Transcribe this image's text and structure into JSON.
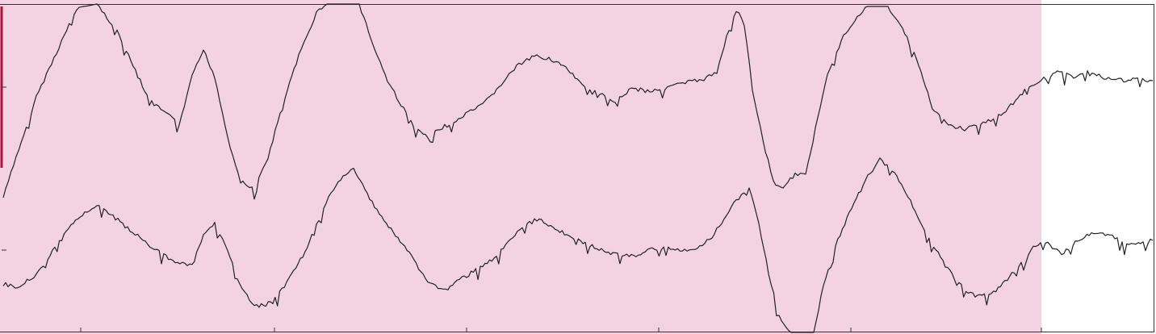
{
  "chart_data": {
    "type": "line",
    "title": "",
    "xlabel": "",
    "ylabel": "",
    "xlim": [
      0,
      1432
    ],
    "grid": false,
    "highlight_band": {
      "x_start": 0,
      "x_end": 1290,
      "color": "#f3d3e2"
    },
    "left_marker_color": "#b0123c",
    "line_color": "#222222",
    "x_ticks": [
      100,
      340,
      578,
      816,
      1054,
      1290
    ],
    "series": [
      {
        "offset": 0,
        "amplitude": 1,
        "points": [
          [
            4,
            245
          ],
          [
            20,
            195
          ],
          [
            45,
            120
          ],
          [
            70,
            65
          ],
          [
            95,
            10
          ],
          [
            120,
            5
          ],
          [
            145,
            38
          ],
          [
            165,
            82
          ],
          [
            185,
            125
          ],
          [
            205,
            140
          ],
          [
            222,
            155
          ],
          [
            238,
            95
          ],
          [
            252,
            62
          ],
          [
            266,
            95
          ],
          [
            282,
            170
          ],
          [
            298,
            225
          ],
          [
            315,
            235
          ],
          [
            332,
            195
          ],
          [
            350,
            130
          ],
          [
            370,
            70
          ],
          [
            392,
            15
          ],
          [
            405,
            5
          ],
          [
            445,
            5
          ],
          [
            462,
            55
          ],
          [
            480,
            100
          ],
          [
            500,
            135
          ],
          [
            515,
            160
          ],
          [
            530,
            170
          ],
          [
            548,
            158
          ],
          [
            565,
            150
          ],
          [
            580,
            140
          ],
          [
            598,
            130
          ],
          [
            618,
            108
          ],
          [
            640,
            82
          ],
          [
            662,
            70
          ],
          [
            680,
            72
          ],
          [
            698,
            82
          ],
          [
            718,
            102
          ],
          [
            740,
            115
          ],
          [
            762,
            125
          ],
          [
            782,
            110
          ],
          [
            805,
            113
          ],
          [
            830,
            107
          ],
          [
            852,
            102
          ],
          [
            872,
            98
          ],
          [
            888,
            90
          ],
          [
            900,
            45
          ],
          [
            912,
            12
          ],
          [
            922,
            30
          ],
          [
            932,
            110
          ],
          [
            945,
            175
          ],
          [
            958,
            225
          ],
          [
            970,
            235
          ],
          [
            985,
            215
          ],
          [
            998,
            218
          ],
          [
            1010,
            160
          ],
          [
            1025,
            90
          ],
          [
            1045,
            45
          ],
          [
            1062,
            20
          ],
          [
            1075,
            8
          ],
          [
            1100,
            8
          ],
          [
            1118,
            35
          ],
          [
            1138,
            80
          ],
          [
            1155,
            135
          ],
          [
            1175,
            155
          ],
          [
            1195,
            160
          ],
          [
            1218,
            153
          ],
          [
            1240,
            142
          ],
          [
            1258,
            125
          ],
          [
            1275,
            106
          ],
          [
            1293,
            98
          ],
          [
            1310,
            90
          ],
          [
            1330,
            95
          ],
          [
            1350,
            88
          ],
          [
            1370,
            97
          ],
          [
            1392,
            100
          ],
          [
            1412,
            98
          ],
          [
            1428,
            100
          ]
        ]
      },
      {
        "offset": 0,
        "amplitude": 1,
        "points": [
          [
            4,
            352
          ],
          [
            22,
            356
          ],
          [
            45,
            340
          ],
          [
            65,
            312
          ],
          [
            88,
            280
          ],
          [
            105,
            262
          ],
          [
            120,
            255
          ],
          [
            140,
            268
          ],
          [
            158,
            283
          ],
          [
            180,
            300
          ],
          [
            200,
            315
          ],
          [
            220,
            325
          ],
          [
            238,
            330
          ],
          [
            252,
            292
          ],
          [
            266,
            278
          ],
          [
            282,
            310
          ],
          [
            300,
            360
          ],
          [
            318,
            380
          ],
          [
            338,
            375
          ],
          [
            355,
            350
          ],
          [
            375,
            318
          ],
          [
            392,
            278
          ],
          [
            410,
            240
          ],
          [
            428,
            215
          ],
          [
            438,
            210
          ],
          [
            452,
            235
          ],
          [
            470,
            265
          ],
          [
            490,
            292
          ],
          [
            510,
            318
          ],
          [
            530,
            350
          ],
          [
            552,
            360
          ],
          [
            572,
            345
          ],
          [
            595,
            332
          ],
          [
            615,
            318
          ],
          [
            632,
            298
          ],
          [
            650,
            280
          ],
          [
            668,
            270
          ],
          [
            685,
            282
          ],
          [
            705,
            292
          ],
          [
            725,
            302
          ],
          [
            745,
            310
          ],
          [
            765,
            316
          ],
          [
            785,
            318
          ],
          [
            805,
            310
          ],
          [
            825,
            306
          ],
          [
            848,
            310
          ],
          [
            870,
            305
          ],
          [
            885,
            290
          ],
          [
            900,
            265
          ],
          [
            915,
            245
          ],
          [
            928,
            232
          ],
          [
            940,
            278
          ],
          [
            952,
            338
          ],
          [
            965,
            392
          ],
          [
            980,
            414
          ],
          [
            1008,
            414
          ],
          [
            1020,
            352
          ],
          [
            1035,
            305
          ],
          [
            1055,
            258
          ],
          [
            1075,
            218
          ],
          [
            1090,
            198
          ],
          [
            1108,
            215
          ],
          [
            1128,
            250
          ],
          [
            1148,
            290
          ],
          [
            1168,
            325
          ],
          [
            1188,
            352
          ],
          [
            1208,
            368
          ],
          [
            1228,
            365
          ],
          [
            1245,
            350
          ],
          [
            1262,
            330
          ],
          [
            1280,
            305
          ],
          [
            1295,
            300
          ],
          [
            1315,
            315
          ],
          [
            1335,
            298
          ],
          [
            1352,
            288
          ],
          [
            1372,
            290
          ],
          [
            1390,
            300
          ],
          [
            1410,
            303
          ],
          [
            1428,
            298
          ]
        ]
      }
    ]
  }
}
